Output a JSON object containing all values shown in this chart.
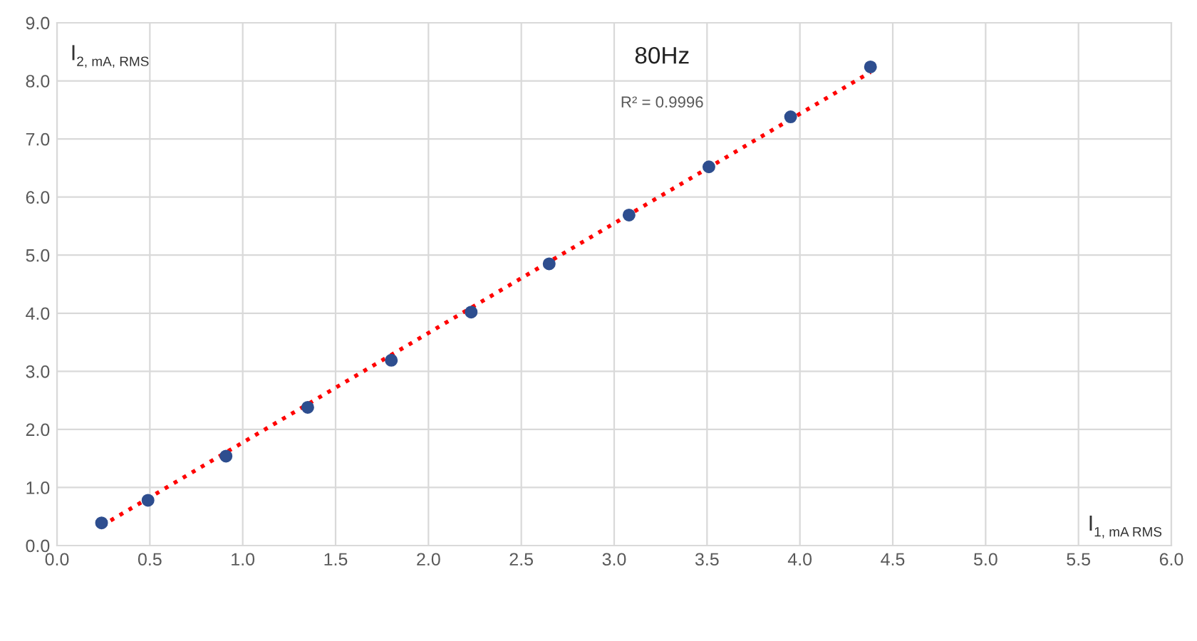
{
  "chart_data": {
    "type": "scatter",
    "title": "80Hz",
    "xlabel": "I$_{1, mA RMS}$",
    "ylabel": "I$_{2, mA, RMS}$",
    "annotations": [
      "R² = 0.9996"
    ],
    "series": [
      {
        "color": "#2e4e8f",
        "marker": "circle",
        "x": [
          0.24,
          0.49,
          0.91,
          1.35,
          1.8,
          2.23,
          2.65,
          3.08,
          3.51,
          3.95,
          4.38
        ],
        "values": [
          0.39,
          0.78,
          1.54,
          2.38,
          3.19,
          4.02,
          4.85,
          5.69,
          6.52,
          7.38,
          8.24
        ]
      },
      {
        "type": "line",
        "color": "#ff0000",
        "line_style": "dotted",
        "x": [
          0.24,
          4.38
        ],
        "values": [
          0.34,
          8.15
        ]
      }
    ],
    "grid": true,
    "legend": false,
    "xlim": [
      0,
      6
    ],
    "xticks": [
      {
        "value": 0,
        "label": "0.0"
      },
      {
        "value": 0.5,
        "label": "0.5"
      },
      {
        "value": 1,
        "label": "1.0"
      },
      {
        "value": 1.5,
        "label": "1.5"
      },
      {
        "value": 2,
        "label": "2.0"
      },
      {
        "value": 2.5,
        "label": "2.5"
      },
      {
        "value": 3,
        "label": "3.0"
      },
      {
        "value": 3.5,
        "label": "3.5"
      },
      {
        "value": 4,
        "label": "4.0"
      },
      {
        "value": 4.5,
        "label": "4.5"
      },
      {
        "value": 5,
        "label": "5.0"
      },
      {
        "value": 5.5,
        "label": "5.5"
      },
      {
        "value": 6,
        "label": "6.0"
      }
    ],
    "ylim": [
      0,
      9
    ],
    "yticks": [
      {
        "value": 0,
        "label": "0.0"
      },
      {
        "value": 1,
        "label": "1.0"
      },
      {
        "value": 2,
        "label": "2.0"
      },
      {
        "value": 3,
        "label": "3.0"
      },
      {
        "value": 4,
        "label": "4.0"
      },
      {
        "value": 5,
        "label": "5.0"
      },
      {
        "value": 6,
        "label": "6.0"
      },
      {
        "value": 7,
        "label": "7.0"
      },
      {
        "value": 8,
        "label": "8.0"
      },
      {
        "value": 9,
        "label": "9.0"
      }
    ]
  }
}
